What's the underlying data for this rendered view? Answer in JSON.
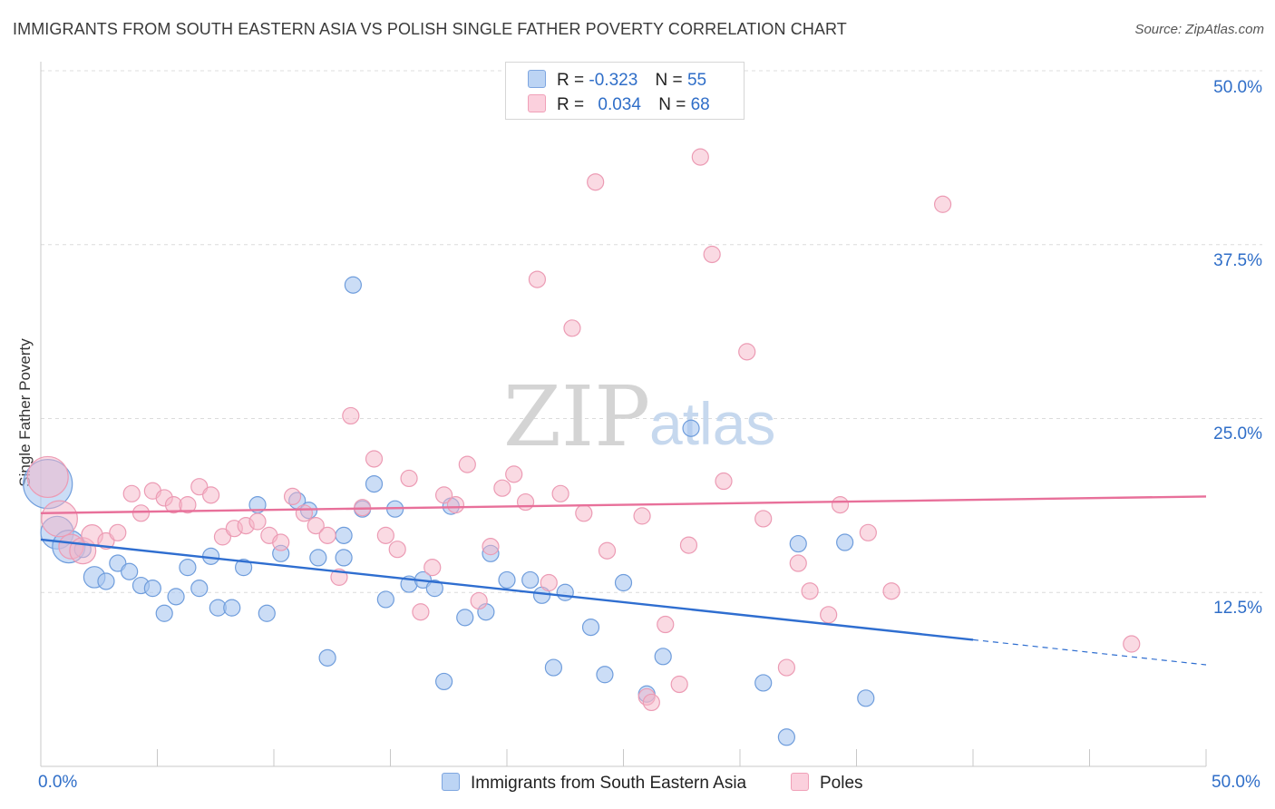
{
  "header": {
    "title": "IMMIGRANTS FROM SOUTH EASTERN ASIA VS POLISH SINGLE FATHER POVERTY CORRELATION CHART",
    "source": "Source: ZipAtlas.com"
  },
  "watermark": {
    "zip": "ZIP",
    "atlas": "atlas"
  },
  "legend": {
    "rows": [
      {
        "r_label": "R =",
        "r_value": "-0.323",
        "n_label": "N =",
        "n_value": "55",
        "color": "#a8c6f0"
      },
      {
        "r_label": "R =",
        "r_value": "0.034",
        "n_label": "N =",
        "n_value": "68",
        "color": "#f6b5c8"
      }
    ]
  },
  "bottom_legend": {
    "series1": "Immigrants from South Eastern Asia",
    "series2": "Poles"
  },
  "chart_data": {
    "type": "scatter",
    "title": "IMMIGRANTS FROM SOUTH EASTERN ASIA VS POLISH SINGLE FATHER POVERTY CORRELATION CHART",
    "xlabel": "",
    "ylabel": "Single Father Poverty",
    "x_tick_labels": [
      "0.0%",
      "50.0%"
    ],
    "y_tick_labels": [
      "12.5%",
      "25.0%",
      "37.5%",
      "50.0%"
    ],
    "xlim": [
      0,
      50
    ],
    "ylim": [
      0,
      50
    ],
    "grid": true,
    "colors": {
      "blue": "#2f6ed0",
      "pink": "#e8709a",
      "blue_fill": "#a8c6f0",
      "pink_fill": "#f6b5c8"
    },
    "series": [
      {
        "name": "Immigrants from South Eastern Asia",
        "color": "#2f6ed0",
        "trend": {
          "x0": 0,
          "y0": 16.3,
          "x1": 40,
          "y1": 9.1,
          "dash_to_x": 50,
          "dash_to_y": 7.3
        },
        "points": [
          [
            0.3,
            20.3,
            3
          ],
          [
            0.7,
            16.8,
            2
          ],
          [
            1.2,
            15.8,
            2
          ],
          [
            1.8,
            15.6,
            1
          ],
          [
            2.3,
            13.6,
            1.3
          ],
          [
            2.8,
            13.3,
            1
          ],
          [
            3.3,
            14.6,
            1
          ],
          [
            3.8,
            14.0,
            1
          ],
          [
            4.3,
            13.0,
            1
          ],
          [
            4.8,
            12.8,
            1
          ],
          [
            5.3,
            11.0,
            1
          ],
          [
            5.8,
            12.2,
            1
          ],
          [
            6.3,
            14.3,
            1
          ],
          [
            6.8,
            12.8,
            1
          ],
          [
            7.3,
            15.1,
            1
          ],
          [
            7.6,
            11.4,
            1
          ],
          [
            8.2,
            11.4,
            1
          ],
          [
            8.7,
            14.3,
            1
          ],
          [
            9.3,
            18.8,
            1
          ],
          [
            9.7,
            11.0,
            1
          ],
          [
            10.3,
            15.3,
            1
          ],
          [
            11.0,
            19.1,
            1
          ],
          [
            11.5,
            18.4,
            1
          ],
          [
            11.9,
            15.0,
            1
          ],
          [
            12.3,
            7.8,
            1
          ],
          [
            13.0,
            16.6,
            1
          ],
          [
            13.0,
            15.0,
            1
          ],
          [
            13.4,
            34.6,
            1
          ],
          [
            13.8,
            18.5,
            1
          ],
          [
            14.3,
            20.3,
            1
          ],
          [
            14.8,
            12.0,
            1
          ],
          [
            15.2,
            18.5,
            1
          ],
          [
            15.8,
            13.1,
            1
          ],
          [
            16.4,
            13.4,
            1
          ],
          [
            16.9,
            12.8,
            1
          ],
          [
            17.3,
            6.1,
            1
          ],
          [
            17.6,
            18.7,
            1
          ],
          [
            18.2,
            10.7,
            1
          ],
          [
            19.1,
            11.1,
            1
          ],
          [
            19.3,
            15.3,
            1
          ],
          [
            20.0,
            13.4,
            1
          ],
          [
            21.0,
            13.4,
            1
          ],
          [
            21.5,
            12.3,
            1
          ],
          [
            22.0,
            7.1,
            1
          ],
          [
            22.5,
            12.5,
            1
          ],
          [
            23.6,
            10.0,
            1
          ],
          [
            24.2,
            6.6,
            1
          ],
          [
            25.0,
            13.2,
            1
          ],
          [
            26.0,
            5.2,
            1
          ],
          [
            26.7,
            7.9,
            1
          ],
          [
            27.9,
            24.3,
            1
          ],
          [
            31.0,
            6.0,
            1
          ],
          [
            32.0,
            2.1,
            1
          ],
          [
            32.5,
            16.0,
            1
          ],
          [
            34.5,
            16.1,
            1
          ],
          [
            35.4,
            4.9,
            1
          ]
        ]
      },
      {
        "name": "Poles",
        "color": "#e8709a",
        "trend": {
          "x0": 0,
          "y0": 18.2,
          "x1": 50,
          "y1": 19.4
        },
        "points": [
          [
            0.3,
            20.8,
            2.5
          ],
          [
            0.8,
            17.8,
            2.2
          ],
          [
            1.3,
            15.8,
            1.5
          ],
          [
            1.8,
            15.5,
            1.6
          ],
          [
            2.2,
            16.6,
            1.3
          ],
          [
            2.8,
            16.2,
            1
          ],
          [
            3.3,
            16.8,
            1
          ],
          [
            3.9,
            19.6,
            1
          ],
          [
            4.3,
            18.2,
            1
          ],
          [
            4.8,
            19.8,
            1
          ],
          [
            5.3,
            19.3,
            1
          ],
          [
            5.7,
            18.8,
            1
          ],
          [
            6.3,
            18.8,
            1
          ],
          [
            6.8,
            20.1,
            1
          ],
          [
            7.3,
            19.5,
            1
          ],
          [
            7.8,
            16.5,
            1
          ],
          [
            8.3,
            17.1,
            1
          ],
          [
            8.8,
            17.3,
            1
          ],
          [
            9.3,
            17.6,
            1
          ],
          [
            9.8,
            16.6,
            1
          ],
          [
            10.3,
            16.1,
            1
          ],
          [
            10.8,
            19.4,
            1
          ],
          [
            11.3,
            18.2,
            1
          ],
          [
            11.8,
            17.3,
            1
          ],
          [
            12.3,
            16.6,
            1
          ],
          [
            12.8,
            13.6,
            1
          ],
          [
            13.3,
            25.2,
            1
          ],
          [
            13.8,
            18.6,
            1
          ],
          [
            14.3,
            22.1,
            1
          ],
          [
            14.8,
            16.6,
            1
          ],
          [
            15.3,
            15.6,
            1
          ],
          [
            15.8,
            20.7,
            1
          ],
          [
            16.3,
            11.1,
            1
          ],
          [
            16.8,
            14.3,
            1
          ],
          [
            17.3,
            19.5,
            1
          ],
          [
            17.8,
            18.8,
            1
          ],
          [
            18.3,
            21.7,
            1
          ],
          [
            18.8,
            11.9,
            1
          ],
          [
            19.3,
            15.8,
            1
          ],
          [
            19.8,
            20.0,
            1
          ],
          [
            20.3,
            21.0,
            1
          ],
          [
            20.8,
            19.0,
            1
          ],
          [
            21.3,
            35.0,
            1
          ],
          [
            21.8,
            13.2,
            1
          ],
          [
            22.3,
            19.6,
            1
          ],
          [
            22.8,
            31.5,
            1
          ],
          [
            23.3,
            18.2,
            1
          ],
          [
            23.8,
            42.0,
            1
          ],
          [
            24.3,
            15.5,
            1
          ],
          [
            25.8,
            18.0,
            1
          ],
          [
            26.0,
            5.0,
            1
          ],
          [
            26.2,
            4.6,
            1
          ],
          [
            26.8,
            10.2,
            1
          ],
          [
            27.4,
            5.9,
            1
          ],
          [
            27.8,
            15.9,
            1
          ],
          [
            28.3,
            43.8,
            1
          ],
          [
            28.8,
            36.8,
            1
          ],
          [
            29.3,
            20.5,
            1
          ],
          [
            30.3,
            29.8,
            1
          ],
          [
            31.0,
            17.8,
            1
          ],
          [
            32.0,
            7.1,
            1
          ],
          [
            32.5,
            14.6,
            1
          ],
          [
            33.0,
            12.6,
            1
          ],
          [
            33.8,
            10.9,
            1
          ],
          [
            34.3,
            18.8,
            1
          ],
          [
            35.5,
            16.8,
            1
          ],
          [
            36.5,
            12.6,
            1
          ],
          [
            38.7,
            40.4,
            1
          ],
          [
            46.8,
            8.8,
            1
          ]
        ]
      }
    ]
  }
}
